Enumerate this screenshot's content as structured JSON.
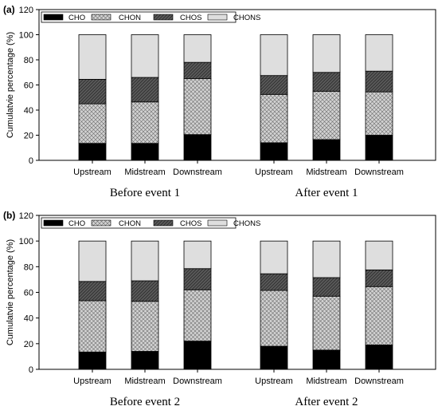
{
  "chart_data": [
    {
      "type": "bar",
      "stacked": true,
      "panel_label": "(a)",
      "ylabel": "Cumulatvie percentage (%)",
      "ylim": [
        0,
        120
      ],
      "yticks": [
        0,
        20,
        40,
        60,
        80,
        100,
        120
      ],
      "legend_position": "top-left",
      "groups": [
        {
          "label": "Before event 1",
          "categories": [
            "Upstream",
            "Midstream",
            "Downstream"
          ]
        },
        {
          "label": "After event 1",
          "categories": [
            "Upstream",
            "Midstream",
            "Downstream"
          ]
        }
      ],
      "series": [
        {
          "name": "CHO",
          "values": [
            13.5,
            13.5,
            20.5,
            14,
            16.5,
            20
          ]
        },
        {
          "name": "CHON",
          "values": [
            31.5,
            33,
            44.5,
            38.5,
            38.5,
            34.5
          ]
        },
        {
          "name": "CHOS",
          "values": [
            19.5,
            19.5,
            13,
            15,
            15,
            16.5
          ]
        },
        {
          "name": "CHONS",
          "values": [
            35.5,
            34,
            22,
            32.5,
            30,
            29
          ]
        }
      ]
    },
    {
      "type": "bar",
      "stacked": true,
      "panel_label": "(b)",
      "ylabel": "Cumulatvie percentage (%)",
      "ylim": [
        0,
        120
      ],
      "yticks": [
        0,
        20,
        40,
        60,
        80,
        100,
        120
      ],
      "legend_position": "top-left",
      "groups": [
        {
          "label": "Before event 2",
          "categories": [
            "Upstream",
            "Midstream",
            "Downstream"
          ]
        },
        {
          "label": "After event 2",
          "categories": [
            "Upstream",
            "Midstream",
            "Downstream"
          ]
        }
      ],
      "series": [
        {
          "name": "CHO",
          "values": [
            13.5,
            14,
            22,
            18,
            15,
            19
          ]
        },
        {
          "name": "CHON",
          "values": [
            40,
            39,
            40,
            43.5,
            42,
            45.5
          ]
        },
        {
          "name": "CHOS",
          "values": [
            15,
            16,
            16.5,
            13,
            14.5,
            13
          ]
        },
        {
          "name": "CHONS",
          "values": [
            31.5,
            31,
            21.5,
            25.5,
            28.5,
            22.5
          ]
        }
      ]
    }
  ],
  "series_styles": [
    {
      "name": "CHO",
      "fill": "#000000",
      "pattern": "solid"
    },
    {
      "name": "CHON",
      "fill": "#cfcfcf",
      "pattern": "crosshatch"
    },
    {
      "name": "CHOS",
      "fill": "#595959",
      "pattern": "diagonal"
    },
    {
      "name": "CHONS",
      "fill": "#dedede",
      "pattern": "solid"
    }
  ]
}
